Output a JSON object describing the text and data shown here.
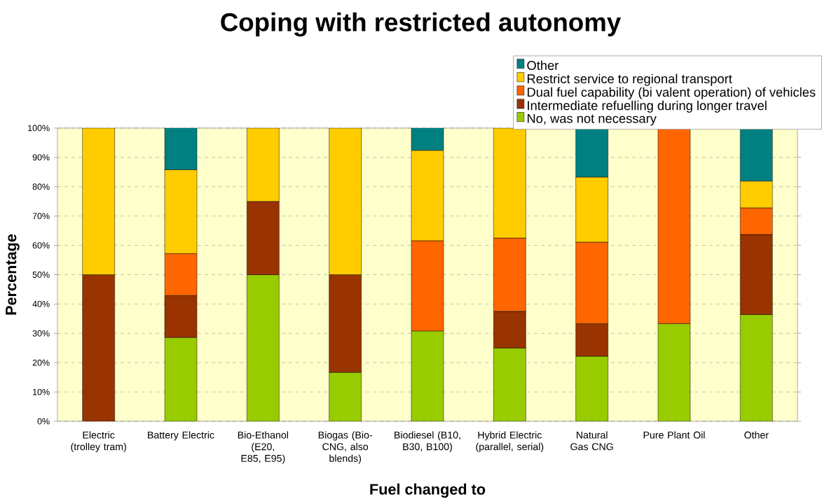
{
  "chart_data": {
    "type": "bar",
    "stacked": true,
    "title": "Coping with restricted autonomy",
    "xlabel": "Fuel changed to",
    "ylabel": "Percentage",
    "categories": [
      "Electric (trolley tram)",
      "Battery Electric",
      "Bio-Ethanol (E20, E85, E95)",
      "Biogas (Bio-CNG, also blends)",
      "Biodiesel (B10, B30, B100)",
      "Hybrid Electric (parallel, serial)",
      "Natural Gas CNG",
      "Pure Plant Oil",
      "Other"
    ],
    "series": [
      {
        "name": "No, was not necessary",
        "color": "#99cc00",
        "values": [
          0,
          28.6,
          50,
          16.7,
          30.8,
          25,
          22.2,
          33.3,
          36.4
        ]
      },
      {
        "name": "Intermediate refuelling during longer travel",
        "color": "#993300",
        "values": [
          50,
          14.3,
          25,
          33.3,
          0,
          12.5,
          11.1,
          0,
          27.3
        ]
      },
      {
        "name": "Dual fuel capability (bi valent operation) of vehicles",
        "color": "#ff6600",
        "values": [
          0,
          14.3,
          0,
          0,
          30.8,
          25,
          27.8,
          66.7,
          9.1
        ]
      },
      {
        "name": "Restrict service to regional transport",
        "color": "#ffcc00",
        "values": [
          50,
          28.6,
          25,
          50,
          30.8,
          37.5,
          22.2,
          0,
          9.1
        ]
      },
      {
        "name": "Other",
        "color": "#008080",
        "values": [
          0,
          14.3,
          0,
          0,
          7.7,
          0,
          16.7,
          0,
          18.2
        ]
      }
    ],
    "ylim": [
      0,
      100
    ],
    "yticks": [
      {
        "value": 0,
        "label": "0%"
      },
      {
        "value": 10,
        "label": "10%"
      },
      {
        "value": 20,
        "label": "20%"
      },
      {
        "value": 30,
        "label": "30%"
      },
      {
        "value": 40,
        "label": "40%"
      },
      {
        "value": 50,
        "label": "50%"
      },
      {
        "value": 60,
        "label": "60%"
      },
      {
        "value": 70,
        "label": "70%"
      },
      {
        "value": 80,
        "label": "80%"
      },
      {
        "value": 90,
        "label": "90%"
      },
      {
        "value": 100,
        "label": "100%"
      }
    ],
    "grid": "y",
    "legend": "top right"
  }
}
